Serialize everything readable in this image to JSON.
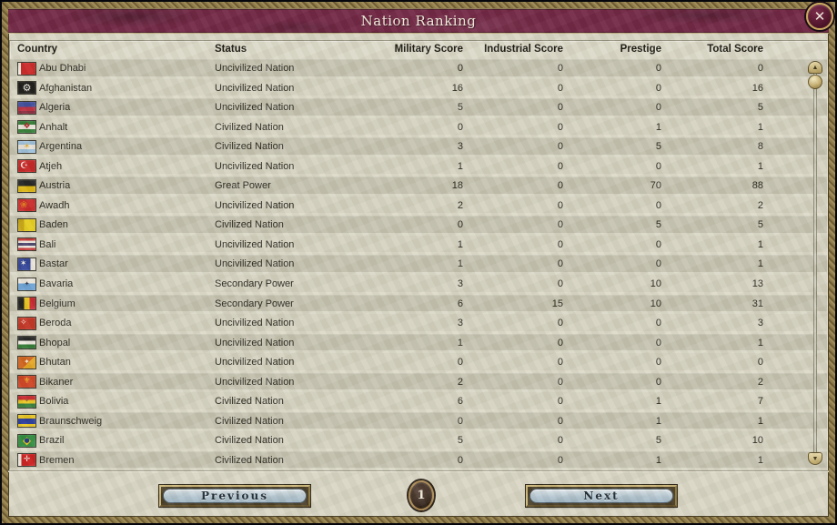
{
  "window": {
    "title": "Nation Ranking"
  },
  "close_button": {
    "glyph": "✕"
  },
  "scrollbar": {
    "up_glyph": "▲",
    "down_glyph": "▼"
  },
  "pagination": {
    "previous_label": "Previous",
    "current_page": "1",
    "next_label": "Next"
  },
  "colors": {
    "titlebar_maroon": "#6e2140",
    "frame_gold": "#8a7a4e",
    "parchment": "#d8d5c4",
    "row_dark": "#c5c2b0",
    "row_light": "#d4d1c0",
    "button_steel_blue": "#b3c5d0"
  },
  "table": {
    "columns": [
      "Country",
      "Status",
      "Military Score",
      "Industrial Score",
      "Prestige",
      "Total Score"
    ],
    "rows": [
      {
        "country": "Abu Dhabi",
        "status": "Uncivilized Nation",
        "military": "0",
        "industrial": "0",
        "prestige": "0",
        "total": "0",
        "flag": {
          "orient": "cols",
          "stripes": [
            [
              "#ece8de",
              16
            ],
            [
              "#c81f1f",
              84
            ]
          ]
        }
      },
      {
        "country": "Afghanistan",
        "status": "Uncivilized Nation",
        "military": "16",
        "industrial": "0",
        "prestige": "0",
        "total": "16",
        "flag": {
          "orient": "rows",
          "stripes": [
            [
              "#161412",
              100
            ]
          ],
          "emblem": {
            "glyph": "⚙",
            "color": "#e8e4dc",
            "size": 11
          }
        }
      },
      {
        "country": "Algeria",
        "status": "Uncivilized Nation",
        "military": "5",
        "industrial": "0",
        "prestige": "0",
        "total": "5",
        "flag": {
          "orient": "rows",
          "stripes": [
            [
              "#3c4c9e",
              42
            ],
            [
              "#b8293a",
              33
            ],
            [
              "#842438",
              25
            ]
          ]
        }
      },
      {
        "country": "Anhalt",
        "status": "Civilized Nation",
        "military": "0",
        "industrial": "0",
        "prestige": "1",
        "total": "1",
        "flag": {
          "orient": "rows",
          "stripes": [
            [
              "#2f7a33",
              30
            ],
            [
              "#e8e4d8",
              40
            ],
            [
              "#2f7a33",
              30
            ]
          ],
          "emblem": {
            "glyph": "❖",
            "color": "#b02424",
            "size": 9
          }
        }
      },
      {
        "country": "Argentina",
        "status": "Civilized Nation",
        "military": "3",
        "industrial": "0",
        "prestige": "5",
        "total": "8",
        "flag": {
          "orient": "rows",
          "stripes": [
            [
              "#9cc0dc",
              32
            ],
            [
              "#eae6dc",
              36
            ],
            [
              "#9cc0dc",
              32
            ]
          ],
          "emblem": {
            "glyph": "☀",
            "color": "#d8a018",
            "size": 8
          }
        }
      },
      {
        "country": "Atjeh",
        "status": "Uncivilized Nation",
        "military": "1",
        "industrial": "0",
        "prestige": "0",
        "total": "1",
        "flag": {
          "orient": "rows",
          "stripes": [
            [
              "#c62222",
              100
            ]
          ],
          "emblem": {
            "glyph": "☪",
            "color": "#f2eee4",
            "size": 10,
            "pos": "left"
          }
        }
      },
      {
        "country": "Austria",
        "status": "Great Power",
        "military": "18",
        "industrial": "0",
        "prestige": "70",
        "total": "88",
        "flag": {
          "orient": "rows",
          "stripes": [
            [
              "#1a1a1a",
              50
            ],
            [
              "#e0b810",
              50
            ]
          ]
        }
      },
      {
        "country": "Awadh",
        "status": "Uncivilized Nation",
        "military": "2",
        "industrial": "0",
        "prestige": "0",
        "total": "2",
        "flag": {
          "orient": "rows",
          "stripes": [
            [
              "#c62222",
              100
            ]
          ],
          "emblem": {
            "glyph": "❀",
            "color": "#e07818",
            "size": 10,
            "pos": "left"
          }
        }
      },
      {
        "country": "Baden",
        "status": "Civilized Nation",
        "military": "0",
        "industrial": "0",
        "prestige": "5",
        "total": "5",
        "flag": {
          "orient": "cols",
          "stripes": [
            [
              "#c6a30e",
              34
            ],
            [
              "#e4ca16",
              66
            ]
          ]
        }
      },
      {
        "country": "Bali",
        "status": "Uncivilized Nation",
        "military": "1",
        "industrial": "0",
        "prestige": "0",
        "total": "1",
        "flag": {
          "orient": "rows",
          "stripes": [
            [
              "#c43030",
              20
            ],
            [
              "#eae6dc",
              18
            ],
            [
              "#47406a",
              24
            ],
            [
              "#eae6dc",
              18
            ],
            [
              "#c43030",
              20
            ]
          ]
        }
      },
      {
        "country": "Bastar",
        "status": "Uncivilized Nation",
        "military": "1",
        "industrial": "0",
        "prestige": "0",
        "total": "1",
        "flag": {
          "orient": "cols",
          "stripes": [
            [
              "#2c3f96",
              72
            ],
            [
              "#e8e4da",
              28
            ]
          ],
          "emblem": {
            "glyph": "✶",
            "color": "#f0ecdf",
            "size": 9,
            "pos": "left"
          }
        }
      },
      {
        "country": "Bavaria",
        "status": "Secondary Power",
        "military": "3",
        "industrial": "0",
        "prestige": "10",
        "total": "13",
        "flag": {
          "orient": "rows",
          "stripes": [
            [
              "#ece8de",
              44
            ],
            [
              "#68a0d4",
              56
            ]
          ],
          "emblem": {
            "glyph": "✦",
            "color": "#3a3a52",
            "size": 7
          }
        }
      },
      {
        "country": "Belgium",
        "status": "Secondary Power",
        "military": "6",
        "industrial": "15",
        "prestige": "10",
        "total": "31",
        "flag": {
          "orient": "cols",
          "stripes": [
            [
              "#1c1c1c",
              33
            ],
            [
              "#e8c41c",
              34
            ],
            [
              "#c8242c",
              33
            ]
          ]
        }
      },
      {
        "country": "Beroda",
        "status": "Uncivilized Nation",
        "military": "3",
        "industrial": "0",
        "prestige": "0",
        "total": "3",
        "flag": {
          "orient": "rows",
          "stripes": [
            [
              "#c43222",
              100
            ]
          ],
          "emblem": {
            "glyph": "✧",
            "color": "#f0e8dc",
            "size": 9,
            "pos": "left"
          }
        }
      },
      {
        "country": "Bhopal",
        "status": "Uncivilized Nation",
        "military": "1",
        "industrial": "0",
        "prestige": "0",
        "total": "1",
        "flag": {
          "orient": "rows",
          "stripes": [
            [
              "#1c1c1c",
              33
            ],
            [
              "#ece8de",
              34
            ],
            [
              "#2f7a33",
              33
            ]
          ]
        }
      },
      {
        "country": "Bhutan",
        "status": "Uncivilized Nation",
        "military": "0",
        "industrial": "0",
        "prestige": "0",
        "total": "0",
        "flag": {
          "orient": "diag",
          "stripes": [
            [
              "#cc5c14",
              55
            ],
            [
              "#e4a41e",
              45
            ]
          ],
          "emblem": {
            "glyph": "✦",
            "color": "#f4e8cc",
            "size": 8
          }
        }
      },
      {
        "country": "Bikaner",
        "status": "Uncivilized Nation",
        "military": "2",
        "industrial": "0",
        "prestige": "0",
        "total": "2",
        "flag": {
          "orient": "rows",
          "stripes": [
            [
              "#cc3c1c",
              100
            ]
          ],
          "emblem": {
            "glyph": "⚜",
            "color": "#e8b41c",
            "size": 9
          }
        }
      },
      {
        "country": "Bolivia",
        "status": "Civilized Nation",
        "military": "6",
        "industrial": "0",
        "prestige": "1",
        "total": "7",
        "flag": {
          "orient": "rows",
          "stripes": [
            [
              "#c8242c",
              33
            ],
            [
              "#e8c41c",
              34
            ],
            [
              "#2f7a33",
              33
            ]
          ],
          "emblem": {
            "glyph": "✦",
            "color": "#8a5a20",
            "size": 6
          }
        }
      },
      {
        "country": "Braunschweig",
        "status": "Civilized Nation",
        "military": "0",
        "industrial": "0",
        "prestige": "1",
        "total": "1",
        "flag": {
          "orient": "rows",
          "stripes": [
            [
              "#e8c41c",
              32
            ],
            [
              "#24379a",
              44
            ],
            [
              "#e8c41c",
              24
            ]
          ]
        }
      },
      {
        "country": "Brazil",
        "status": "Civilized Nation",
        "military": "5",
        "industrial": "0",
        "prestige": "5",
        "total": "10",
        "flag": {
          "orient": "rows",
          "stripes": [
            [
              "#2c8a3c",
              100
            ]
          ],
          "emblem": {
            "glyph": "◆",
            "color": "#e8c41c",
            "size": 12
          },
          "emblem2": {
            "glyph": "●",
            "color": "#1c3a8c",
            "size": 7
          }
        }
      },
      {
        "country": "Bremen",
        "status": "Civilized Nation",
        "military": "0",
        "industrial": "0",
        "prestige": "1",
        "total": "1",
        "flag": {
          "orient": "cols",
          "stripes": [
            [
              "#eee9df",
              18
            ],
            [
              "#cc1c1c",
              82
            ]
          ],
          "emblem": {
            "glyph": "✛",
            "color": "#f0ece2",
            "size": 9
          }
        }
      }
    ]
  }
}
